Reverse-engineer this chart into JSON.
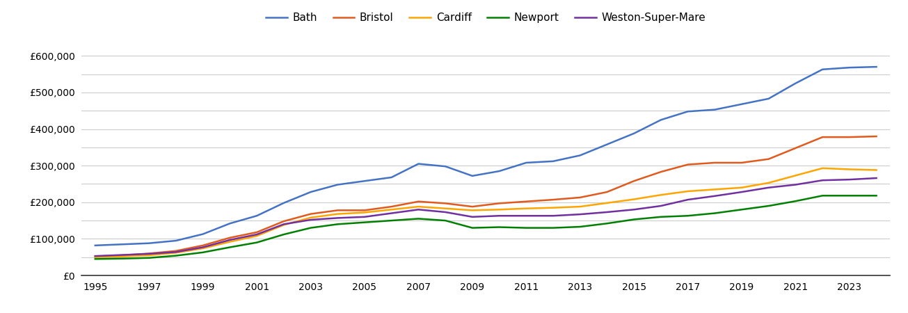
{
  "years": [
    1995,
    1996,
    1997,
    1998,
    1999,
    2000,
    2001,
    2002,
    2003,
    2004,
    2005,
    2006,
    2007,
    2008,
    2009,
    2010,
    2011,
    2012,
    2013,
    2014,
    2015,
    2016,
    2017,
    2018,
    2019,
    2020,
    2021,
    2022,
    2023,
    2024
  ],
  "Bath": [
    82000,
    85000,
    88000,
    95000,
    113000,
    142000,
    163000,
    198000,
    228000,
    248000,
    258000,
    268000,
    305000,
    298000,
    272000,
    285000,
    308000,
    312000,
    328000,
    358000,
    388000,
    425000,
    448000,
    453000,
    468000,
    483000,
    525000,
    563000,
    568000,
    570000
  ],
  "Bristol": [
    52000,
    55000,
    60000,
    67000,
    82000,
    103000,
    118000,
    148000,
    168000,
    178000,
    178000,
    188000,
    202000,
    197000,
    188000,
    197000,
    202000,
    207000,
    213000,
    228000,
    258000,
    283000,
    303000,
    308000,
    308000,
    318000,
    348000,
    378000,
    378000,
    380000
  ],
  "Cardiff": [
    50000,
    52000,
    55000,
    62000,
    74000,
    92000,
    108000,
    138000,
    158000,
    168000,
    172000,
    180000,
    188000,
    183000,
    178000,
    180000,
    183000,
    185000,
    188000,
    198000,
    208000,
    220000,
    230000,
    235000,
    240000,
    253000,
    273000,
    293000,
    290000,
    288000
  ],
  "Newport": [
    45000,
    46000,
    48000,
    54000,
    63000,
    77000,
    90000,
    112000,
    130000,
    140000,
    145000,
    150000,
    155000,
    150000,
    130000,
    132000,
    130000,
    130000,
    133000,
    142000,
    153000,
    160000,
    163000,
    170000,
    180000,
    190000,
    203000,
    218000,
    218000,
    218000
  ],
  "Weston-Super-Mare": [
    53000,
    56000,
    59000,
    64000,
    77000,
    97000,
    112000,
    140000,
    152000,
    157000,
    160000,
    170000,
    180000,
    173000,
    160000,
    163000,
    163000,
    163000,
    167000,
    173000,
    180000,
    190000,
    207000,
    217000,
    228000,
    240000,
    248000,
    260000,
    262000,
    266000
  ],
  "colors": {
    "Bath": "#4472C4",
    "Bristol": "#E05A1E",
    "Cardiff": "#FFA500",
    "Newport": "#008000",
    "Weston-Super-Mare": "#7030A0"
  },
  "ylim": [
    0,
    650000
  ],
  "yticks": [
    0,
    100000,
    200000,
    300000,
    400000,
    500000,
    600000
  ],
  "ytick_labels": [
    "£0",
    "£100,000",
    "£200,000",
    "£300,000",
    "£400,000",
    "£500,000",
    "£600,000"
  ],
  "minor_yticks": [
    50000,
    150000,
    250000,
    350000,
    450000,
    550000
  ],
  "xtick_years": [
    1995,
    1997,
    1999,
    2001,
    2003,
    2005,
    2007,
    2009,
    2011,
    2013,
    2015,
    2017,
    2019,
    2021,
    2023
  ],
  "background_color": "#ffffff",
  "grid_color": "#cccccc",
  "line_width": 1.8
}
